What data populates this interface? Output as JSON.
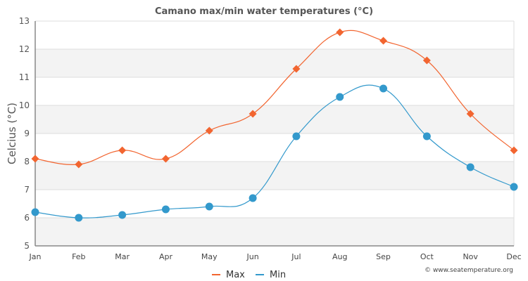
{
  "chart_data": {
    "type": "line",
    "title": "Camano max/min water temperatures (°C)",
    "xlabel": "",
    "ylabel": "Celcius (°C)",
    "categories": [
      "Jan",
      "Feb",
      "Mar",
      "Apr",
      "May",
      "Jun",
      "Jul",
      "Aug",
      "Sep",
      "Oct",
      "Nov",
      "Dec"
    ],
    "ylim": [
      5,
      13
    ],
    "yticks": [
      5,
      6,
      7,
      8,
      9,
      10,
      11,
      12,
      13
    ],
    "grid": true,
    "legend_position": "bottom-center",
    "series": [
      {
        "name": "Max",
        "color": "#f26530",
        "marker": "diamond",
        "values": [
          8.1,
          7.9,
          8.4,
          8.1,
          9.1,
          9.7,
          11.3,
          12.6,
          12.3,
          11.6,
          9.7,
          8.4
        ]
      },
      {
        "name": "Min",
        "color": "#3399cc",
        "marker": "circle",
        "values": [
          6.2,
          6.0,
          6.1,
          6.3,
          6.4,
          6.7,
          8.9,
          10.3,
          10.6,
          8.9,
          7.8,
          7.1
        ]
      }
    ],
    "credit": "© www.seatemperature.org"
  }
}
